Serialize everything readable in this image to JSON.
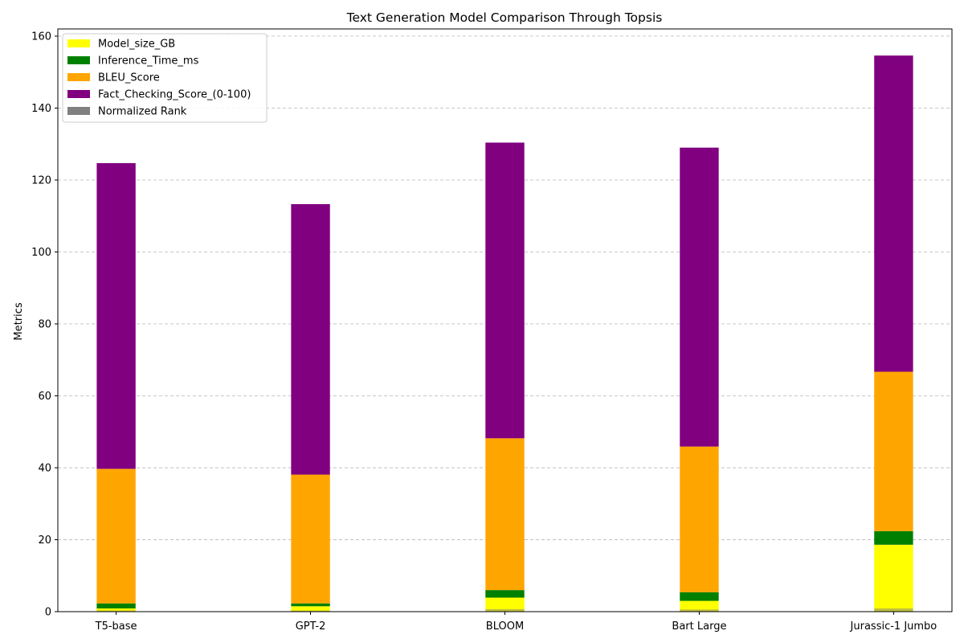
{
  "chart_data": {
    "type": "bar",
    "stacked": true,
    "title": "Text Generation Model Comparison Through Topsis",
    "xlabel": "",
    "ylabel": "Metrics",
    "ylim": [
      0,
      162
    ],
    "yticks": [
      0,
      20,
      40,
      60,
      80,
      100,
      120,
      140,
      160
    ],
    "grid": "horizontal dashed",
    "legend_position": "top-left",
    "categories": [
      "T5-base",
      "GPT-2",
      "BLOOM",
      "Bart Large",
      "Jurassic-1 Jumbo"
    ],
    "series": [
      {
        "name": "Normalized Rank",
        "color": "#808080",
        "alpha": 0.5,
        "values": [
          0.3,
          0.3,
          0.7,
          0.6,
          0.9
        ],
        "overlay": true
      },
      {
        "name": "Model_size_GB",
        "color": "#ffff00",
        "values": [
          0.9,
          1.5,
          3.9,
          3.0,
          18.6
        ]
      },
      {
        "name": "Inference_Time_ms",
        "color": "#008000",
        "values": [
          1.4,
          0.8,
          2.1,
          2.4,
          3.8
        ]
      },
      {
        "name": "BLEU_Score",
        "color": "#ffa500",
        "values": [
          37.4,
          35.8,
          42.2,
          40.5,
          44.3
        ]
      },
      {
        "name": "Fact_Checking_Score_(0-100)",
        "color": "#800080",
        "values": [
          85.0,
          75.2,
          82.2,
          83.1,
          87.9
        ]
      }
    ],
    "legend_order": [
      "Model_size_GB",
      "Inference_Time_ms",
      "BLEU_Score",
      "Fact_Checking_Score_(0-100)",
      "Normalized Rank"
    ]
  }
}
